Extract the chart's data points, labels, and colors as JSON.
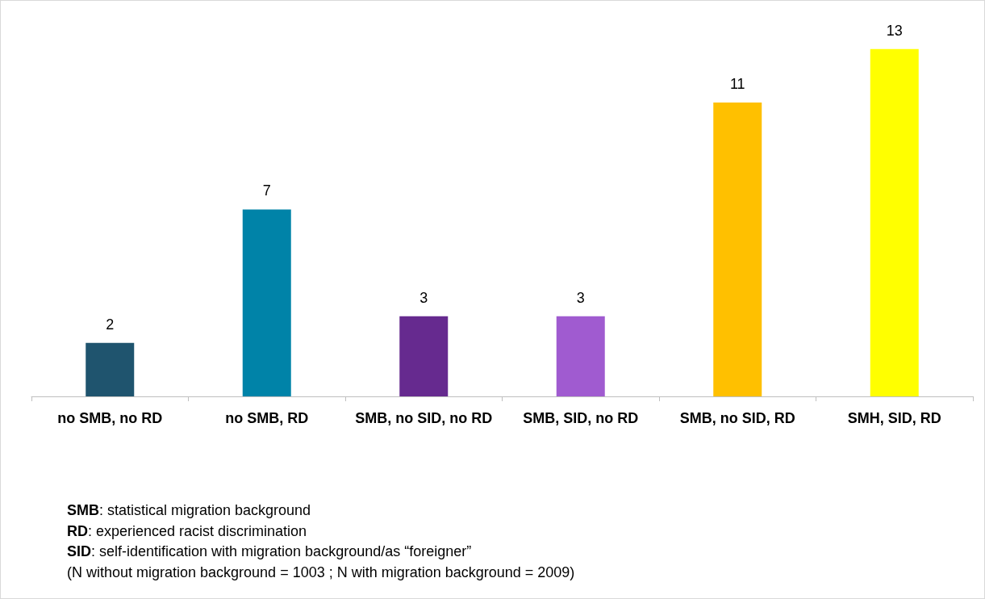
{
  "chart_data": {
    "type": "bar",
    "categories": [
      "no SMB, no RD",
      "no SMB, RD",
      "SMB, no SID, no RD",
      "SMB, SID, no RD",
      "SMB, no SID, RD",
      "SMH, SID, RD"
    ],
    "values": [
      2,
      7,
      3,
      3,
      11,
      13
    ],
    "colors": [
      "#1f546e",
      "#0083a8",
      "#662a8f",
      "#a05bd0",
      "#ffc000",
      "#ffff00"
    ],
    "data_labels": true,
    "annotations": [
      "SMB: statistical migration background",
      "RD: experienced racist discrimination",
      "SID: self-identification with migration background/as “foreigner”",
      "(N without migration background = 1003 ; N with migration background = 2009)"
    ]
  }
}
